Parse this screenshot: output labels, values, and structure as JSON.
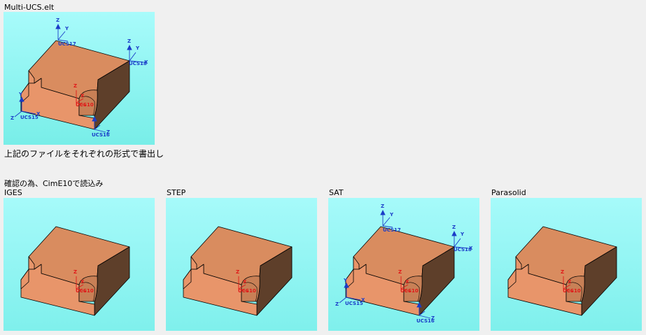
{
  "top": {
    "filename": "Multi-UCS.elt",
    "caption": "上記のファイルをそれぞれの形式で書出し"
  },
  "import_note": "確認の為、CimE10で読込み",
  "views": [
    {
      "label": "IGES",
      "show_ucs": false
    },
    {
      "label": "STEP",
      "show_ucs": false
    },
    {
      "label": "SAT",
      "show_ucs": true
    },
    {
      "label": "Parasolid",
      "show_ucs": false
    }
  ],
  "ucs_labels": {
    "ucs17": "UCS17",
    "ucs18": "UCS18",
    "ucs15": "UCS15",
    "ucs16": "UCS16",
    "ucs10": "UCS10",
    "x": "X",
    "y": "Y",
    "z": "Z"
  },
  "colors": {
    "viewport_bottom": "#7ff0ec",
    "viewport_top": "#a6fafa",
    "block_front": "#e8956a",
    "block_top": "#d98c5f",
    "block_side": "#5e3f2a",
    "block_edge": "#000000",
    "ucs_blue": "#1a3cc8",
    "ucs_red": "#e01818"
  }
}
